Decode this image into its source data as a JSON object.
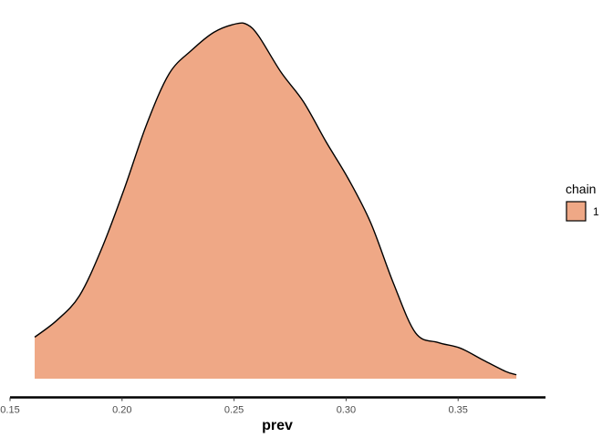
{
  "chart_data": {
    "type": "area",
    "title": "",
    "xlabel": "prev",
    "ylabel": "",
    "xlim": [
      0.15,
      0.389
    ],
    "ylim": [
      0,
      1
    ],
    "x_ticks": [
      0.15,
      0.2,
      0.25,
      0.3,
      0.35
    ],
    "x_tick_labels": [
      "0.15",
      "0.20",
      "0.25",
      "0.30",
      "0.35"
    ],
    "grid": false,
    "legend": {
      "title": "chain",
      "placement": "right",
      "entries": [
        "1"
      ]
    },
    "colors": {
      "fill": "#efa886",
      "stroke": "#000000"
    },
    "series": [
      {
        "name": "1",
        "x": [
          0.161,
          0.171,
          0.181,
          0.191,
          0.201,
          0.211,
          0.221,
          0.231,
          0.241,
          0.251,
          0.256,
          0.261,
          0.271,
          0.281,
          0.291,
          0.301,
          0.311,
          0.321,
          0.331,
          0.341,
          0.351,
          0.361,
          0.371,
          0.376
        ],
        "y": [
          0.117,
          0.165,
          0.234,
          0.368,
          0.535,
          0.717,
          0.859,
          0.925,
          0.976,
          1.0,
          0.997,
          0.965,
          0.863,
          0.78,
          0.668,
          0.563,
          0.439,
          0.271,
          0.129,
          0.102,
          0.086,
          0.053,
          0.021,
          0.011
        ]
      }
    ]
  }
}
